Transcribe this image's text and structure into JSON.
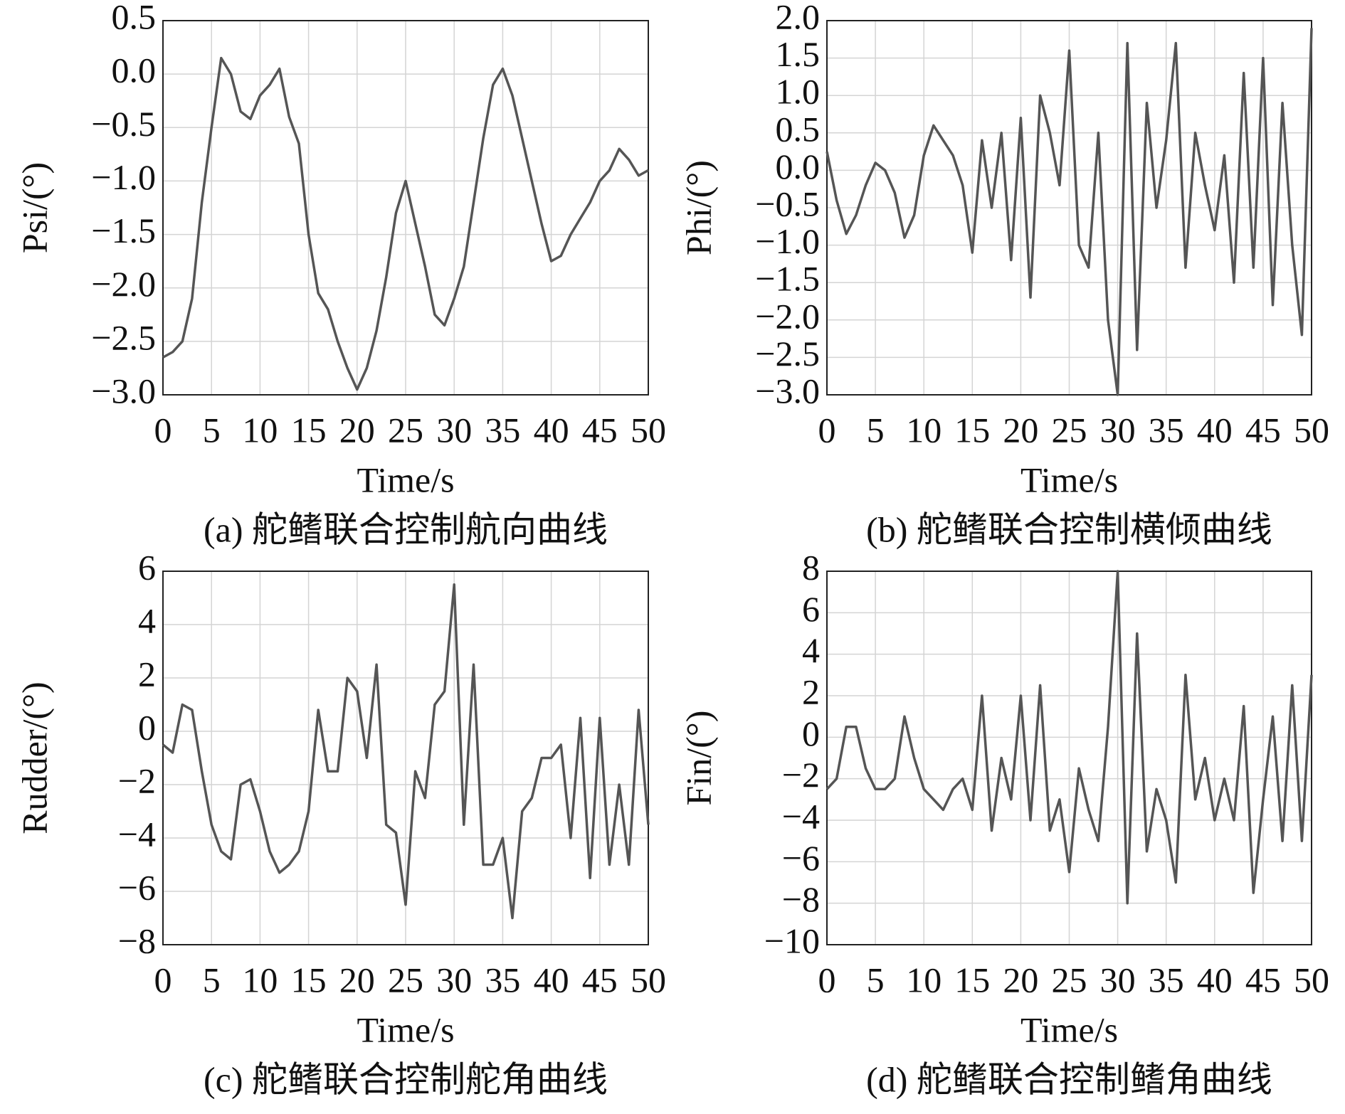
{
  "chart_data": [
    {
      "type": "line",
      "title": "(a) 舵鳍联合控制航向曲线",
      "xlabel": "Time/s",
      "ylabel": "Psi/(°)",
      "xlim": [
        0,
        50
      ],
      "xticks": [
        0,
        5,
        10,
        15,
        20,
        25,
        30,
        35,
        40,
        45,
        50
      ],
      "ylim": [
        -3,
        0.5
      ],
      "yticks": [
        {
          "value": -3,
          "label": "−3.0"
        },
        {
          "value": -2.5,
          "label": "−2.5"
        },
        {
          "value": -2,
          "label": "−2.0"
        },
        {
          "value": -1.5,
          "label": "−1.5"
        },
        {
          "value": -1,
          "label": "−1.0"
        },
        {
          "value": -0.5,
          "label": "−0.5"
        },
        {
          "value": 0,
          "label": "0.0"
        },
        0.5
      ],
      "grid": true,
      "color": "#555555",
      "x": [
        0,
        1,
        2,
        3,
        4,
        5,
        6,
        7,
        8,
        9,
        10,
        11,
        12,
        13,
        14,
        15,
        16,
        17,
        18,
        19,
        20,
        21,
        22,
        23,
        24,
        25,
        26,
        27,
        28,
        29,
        30,
        31,
        32,
        33,
        34,
        35,
        36,
        37,
        38,
        39,
        40,
        41,
        42,
        43,
        44,
        45,
        46,
        47,
        48,
        49,
        50
      ],
      "values": [
        -2.65,
        -2.6,
        -2.5,
        -2.1,
        -1.2,
        -0.5,
        0.15,
        0.0,
        -0.35,
        -0.42,
        -0.2,
        -0.1,
        0.05,
        -0.4,
        -0.65,
        -1.5,
        -2.05,
        -2.2,
        -2.5,
        -2.75,
        -2.95,
        -2.75,
        -2.4,
        -1.9,
        -1.3,
        -1.0,
        -1.4,
        -1.8,
        -2.25,
        -2.35,
        -2.1,
        -1.8,
        -1.2,
        -0.6,
        -0.1,
        0.05,
        -0.2,
        -0.6,
        -1.0,
        -1.4,
        -1.75,
        -1.7,
        -1.5,
        -1.35,
        -1.2,
        -1.0,
        -0.9,
        -0.7,
        -0.8,
        -0.95,
        -0.9
      ]
    },
    {
      "type": "line",
      "title": "(b) 舵鳍联合控制横倾曲线",
      "xlabel": "Time/s",
      "ylabel": "Phi/(°)",
      "xlim": [
        0,
        50
      ],
      "xticks": [
        0,
        5,
        10,
        15,
        20,
        25,
        30,
        35,
        40,
        45,
        50
      ],
      "ylim": [
        -3,
        2
      ],
      "yticks": [
        {
          "value": -3,
          "label": "−3.0"
        },
        {
          "value": -2.5,
          "label": "−2.5"
        },
        {
          "value": -2,
          "label": "−2.0"
        },
        {
          "value": -1.5,
          "label": "−1.5"
        },
        {
          "value": -1,
          "label": "−1.0"
        },
        {
          "value": -0.5,
          "label": "−0.5"
        },
        {
          "value": 0,
          "label": "0.0"
        },
        0.5,
        {
          "value": 1,
          "label": "1.0"
        },
        1.5,
        {
          "value": 2,
          "label": "2.0"
        }
      ],
      "grid": true,
      "color": "#555555",
      "x": [
        0,
        1,
        2,
        3,
        4,
        5,
        6,
        7,
        8,
        9,
        10,
        11,
        12,
        13,
        14,
        15,
        16,
        17,
        18,
        19,
        20,
        21,
        22,
        23,
        24,
        25,
        26,
        27,
        28,
        29,
        30,
        31,
        32,
        33,
        34,
        35,
        36,
        37,
        38,
        39,
        40,
        41,
        42,
        43,
        44,
        45,
        46,
        47,
        48,
        49,
        50
      ],
      "values": [
        0.25,
        -0.4,
        -0.85,
        -0.6,
        -0.2,
        0.1,
        0.0,
        -0.3,
        -0.9,
        -0.6,
        0.2,
        0.6,
        0.4,
        0.2,
        -0.2,
        -1.1,
        0.4,
        -0.5,
        0.5,
        -1.2,
        0.7,
        -1.7,
        1.0,
        0.5,
        -0.2,
        1.6,
        -1.0,
        -1.3,
        0.5,
        -2.0,
        -3.0,
        1.7,
        -2.4,
        0.9,
        -0.5,
        0.4,
        1.7,
        -1.3,
        0.5,
        -0.2,
        -0.8,
        0.2,
        -1.5,
        1.3,
        -1.3,
        1.5,
        -1.8,
        0.9,
        -1.0,
        -2.2,
        1.9
      ]
    },
    {
      "type": "line",
      "title": "(c) 舵鳍联合控制舵角曲线",
      "xlabel": "Time/s",
      "ylabel": "Rudder/(°)",
      "xlim": [
        0,
        50
      ],
      "xticks": [
        0,
        5,
        10,
        15,
        20,
        25,
        30,
        35,
        40,
        45,
        50
      ],
      "ylim": [
        -8,
        6
      ],
      "yticks": [
        {
          "value": -8,
          "label": "−8"
        },
        {
          "value": -6,
          "label": "−6"
        },
        {
          "value": -4,
          "label": "−4"
        },
        {
          "value": -2,
          "label": "−2"
        },
        0,
        2,
        4,
        6
      ],
      "grid": true,
      "color": "#555555",
      "x": [
        0,
        1,
        2,
        3,
        4,
        5,
        6,
        7,
        8,
        9,
        10,
        11,
        12,
        13,
        14,
        15,
        16,
        17,
        18,
        19,
        20,
        21,
        22,
        23,
        24,
        25,
        26,
        27,
        28,
        29,
        30,
        31,
        32,
        33,
        34,
        35,
        36,
        37,
        38,
        39,
        40,
        41,
        42,
        43,
        44,
        45,
        46,
        47,
        48,
        49,
        50
      ],
      "values": [
        -0.5,
        -0.8,
        1.0,
        0.8,
        -1.5,
        -3.5,
        -4.5,
        -4.8,
        -2.0,
        -1.8,
        -3.0,
        -4.5,
        -5.3,
        -5.0,
        -4.5,
        -3.0,
        0.8,
        -1.5,
        -1.5,
        2.0,
        1.5,
        -1.0,
        2.5,
        -3.5,
        -3.8,
        -6.5,
        -1.5,
        -2.5,
        1.0,
        1.5,
        5.5,
        -3.5,
        2.5,
        -5.0,
        -5.0,
        -4.0,
        -7.0,
        -3.0,
        -2.5,
        -1.0,
        -1.0,
        -0.5,
        -4.0,
        0.5,
        -5.5,
        0.5,
        -5.0,
        -2.0,
        -5.0,
        0.8,
        -3.5
      ]
    },
    {
      "type": "line",
      "title": "(d) 舵鳍联合控制鳍角曲线",
      "xlabel": "Time/s",
      "ylabel": "Fin/(°)",
      "xlim": [
        0,
        50
      ],
      "xticks": [
        0,
        5,
        10,
        15,
        20,
        25,
        30,
        35,
        40,
        45,
        50
      ],
      "ylim": [
        -10,
        8
      ],
      "yticks": [
        {
          "value": -10,
          "label": "−10"
        },
        {
          "value": -8,
          "label": "−8"
        },
        {
          "value": -6,
          "label": "−6"
        },
        {
          "value": -4,
          "label": "−4"
        },
        {
          "value": -2,
          "label": "−2"
        },
        0,
        2,
        4,
        6,
        8
      ],
      "grid": true,
      "color": "#555555",
      "x": [
        0,
        1,
        2,
        3,
        4,
        5,
        6,
        7,
        8,
        9,
        10,
        11,
        12,
        13,
        14,
        15,
        16,
        17,
        18,
        19,
        20,
        21,
        22,
        23,
        24,
        25,
        26,
        27,
        28,
        29,
        30,
        31,
        32,
        33,
        34,
        35,
        36,
        37,
        38,
        39,
        40,
        41,
        42,
        43,
        44,
        45,
        46,
        47,
        48,
        49,
        50
      ],
      "values": [
        -2.5,
        -2.0,
        0.5,
        0.5,
        -1.5,
        -2.5,
        -2.5,
        -2.0,
        1.0,
        -1.0,
        -2.5,
        -3.0,
        -3.5,
        -2.5,
        -2.0,
        -3.5,
        2.0,
        -4.5,
        -1.0,
        -3.0,
        2.0,
        -4.0,
        2.5,
        -4.5,
        -3.0,
        -6.5,
        -1.5,
        -3.5,
        -5.0,
        0.5,
        8.0,
        -8.0,
        5.0,
        -5.5,
        -2.5,
        -4.0,
        -7.0,
        3.0,
        -3.0,
        -1.0,
        -4.0,
        -2.0,
        -4.0,
        1.5,
        -7.5,
        -3.0,
        1.0,
        -5.0,
        2.5,
        -5.0,
        3.0
      ]
    }
  ]
}
